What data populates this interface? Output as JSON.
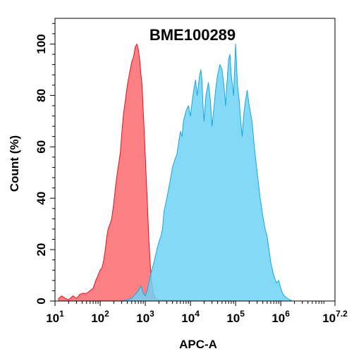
{
  "chart_data": {
    "type": "area",
    "title": "BME100289",
    "xlabel": "APC-A",
    "ylabel": "Count  (%)",
    "x_scale": "log",
    "xlim": [
      10,
      15848932
    ],
    "ylim": [
      0,
      110
    ],
    "x_ticks": [
      {
        "value": 10,
        "base": "10",
        "exp": "1"
      },
      {
        "value": 100,
        "base": "10",
        "exp": "2"
      },
      {
        "value": 1000,
        "base": "10",
        "exp": "3"
      },
      {
        "value": 10000,
        "base": "10",
        "exp": "4"
      },
      {
        "value": 100000,
        "base": "10",
        "exp": "5"
      },
      {
        "value": 1000000,
        "base": "10",
        "exp": "6"
      },
      {
        "value": 15848932,
        "base": "10",
        "exp": "7.2"
      }
    ],
    "y_ticks": [
      "0",
      "20",
      "40",
      "60",
      "80",
      "100"
    ],
    "grid": false,
    "legend": "none",
    "series": [
      {
        "color": "#f96a6e",
        "stroke": "#e8101c",
        "points": [
          [
            12,
            1
          ],
          [
            14,
            2
          ],
          [
            17,
            1
          ],
          [
            20,
            0.5
          ],
          [
            25,
            2
          ],
          [
            30,
            1
          ],
          [
            35,
            2.5
          ],
          [
            40,
            3
          ],
          [
            50,
            3
          ],
          [
            60,
            4
          ],
          [
            70,
            5
          ],
          [
            80,
            8
          ],
          [
            90,
            10
          ],
          [
            100,
            12
          ],
          [
            110,
            13
          ],
          [
            120,
            16
          ],
          [
            130,
            20
          ],
          [
            140,
            25
          ],
          [
            150,
            28
          ],
          [
            165,
            30
          ],
          [
            180,
            32
          ],
          [
            200,
            38
          ],
          [
            220,
            45
          ],
          [
            240,
            50
          ],
          [
            260,
            54
          ],
          [
            280,
            58
          ],
          [
            300,
            65
          ],
          [
            330,
            73
          ],
          [
            360,
            78
          ],
          [
            400,
            84
          ],
          [
            450,
            89
          ],
          [
            500,
            93
          ],
          [
            550,
            95
          ],
          [
            600,
            99
          ],
          [
            650,
            100
          ],
          [
            700,
            98
          ],
          [
            750,
            94
          ],
          [
            800,
            88
          ],
          [
            850,
            84
          ],
          [
            900,
            74
          ],
          [
            950,
            66
          ],
          [
            1000,
            56
          ],
          [
            1100,
            40
          ],
          [
            1200,
            24
          ],
          [
            1300,
            13
          ],
          [
            1400,
            7
          ],
          [
            1500,
            3
          ],
          [
            1700,
            1
          ],
          [
            2000,
            0.5
          ],
          [
            3000,
            0.3
          ],
          [
            10000,
            0.2
          ],
          [
            100000,
            0.1
          ],
          [
            500000,
            0
          ]
        ]
      },
      {
        "color": "#6ed3f4",
        "stroke": "#14a7df",
        "points": [
          [
            300,
            0
          ],
          [
            500,
            1
          ],
          [
            700,
            4
          ],
          [
            800,
            6
          ],
          [
            900,
            3
          ],
          [
            1000,
            2
          ],
          [
            1100,
            4
          ],
          [
            1300,
            10
          ],
          [
            1600,
            16
          ],
          [
            1800,
            20
          ],
          [
            2000,
            23
          ],
          [
            2200,
            25
          ],
          [
            2400,
            28
          ],
          [
            2600,
            35
          ],
          [
            3000,
            40
          ],
          [
            3400,
            45
          ],
          [
            4000,
            52
          ],
          [
            4500,
            55
          ],
          [
            5000,
            57
          ],
          [
            5500,
            62
          ],
          [
            6000,
            66
          ],
          [
            6500,
            64
          ],
          [
            7000,
            70
          ],
          [
            8000,
            74
          ],
          [
            9000,
            76
          ],
          [
            10000,
            72
          ],
          [
            11000,
            78
          ],
          [
            12000,
            83
          ],
          [
            13000,
            86
          ],
          [
            14000,
            80
          ],
          [
            15000,
            84
          ],
          [
            16000,
            88
          ],
          [
            17000,
            90
          ],
          [
            18000,
            86
          ],
          [
            19000,
            76
          ],
          [
            20000,
            70
          ],
          [
            22000,
            80
          ],
          [
            25000,
            85
          ],
          [
            28000,
            77
          ],
          [
            30000,
            68
          ],
          [
            33000,
            75
          ],
          [
            36000,
            82
          ],
          [
            40000,
            88
          ],
          [
            45000,
            92
          ],
          [
            50000,
            90
          ],
          [
            55000,
            84
          ],
          [
            60000,
            76
          ],
          [
            65000,
            86
          ],
          [
            70000,
            94
          ],
          [
            75000,
            96
          ],
          [
            80000,
            88
          ],
          [
            90000,
            80
          ],
          [
            100000,
            100
          ],
          [
            110000,
            84
          ],
          [
            120000,
            78
          ],
          [
            130000,
            70
          ],
          [
            140000,
            64
          ],
          [
            150000,
            72
          ],
          [
            165000,
            78
          ],
          [
            180000,
            82
          ],
          [
            200000,
            76
          ],
          [
            230000,
            70
          ],
          [
            260000,
            60
          ],
          [
            300000,
            50
          ],
          [
            350000,
            40
          ],
          [
            400000,
            33
          ],
          [
            450000,
            28
          ],
          [
            500000,
            25
          ],
          [
            550000,
            20
          ],
          [
            600000,
            15
          ],
          [
            700000,
            10
          ],
          [
            800000,
            7
          ],
          [
            900000,
            8
          ],
          [
            1000000,
            5
          ],
          [
            1100000,
            3
          ],
          [
            1200000,
            2
          ],
          [
            1400000,
            1
          ],
          [
            1600000,
            0.5
          ],
          [
            1800000,
            0
          ]
        ]
      }
    ]
  }
}
